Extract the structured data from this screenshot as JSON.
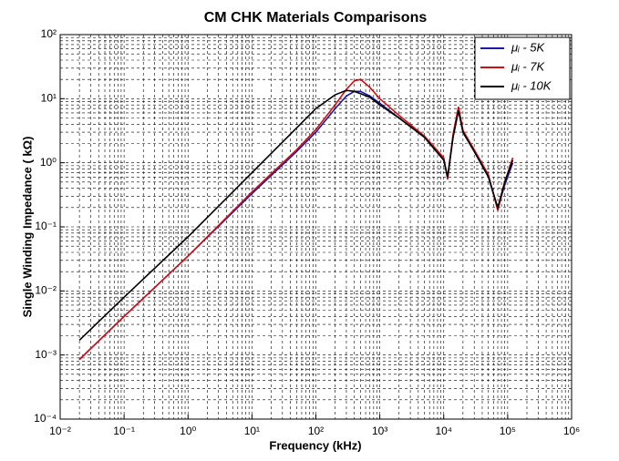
{
  "chart_data": {
    "type": "line",
    "title": "CM CHK  Materials Comparisons",
    "x_label": "Frequency (kHz)",
    "y_label": "Single Winding Impedance ( kΩ)",
    "x_log": true,
    "y_log": true,
    "grid": true,
    "minor_grid": true,
    "legend_position": "upper right",
    "xlim": [
      0.01,
      1000000
    ],
    "ylim": [
      0.0001,
      100
    ],
    "xticks": [
      {
        "value": 0.01,
        "label": "10⁻²"
      },
      {
        "value": 0.1,
        "label": "10⁻¹"
      },
      {
        "value": 1,
        "label": "10⁰"
      },
      {
        "value": 10,
        "label": "10¹"
      },
      {
        "value": 100,
        "label": "10²"
      },
      {
        "value": 1000,
        "label": "10³"
      },
      {
        "value": 10000,
        "label": "10⁴"
      },
      {
        "value": 100000,
        "label": "10⁵"
      },
      {
        "value": 1000000,
        "label": "10⁶"
      }
    ],
    "yticks": [
      {
        "value": 0.0001,
        "label": "10⁻⁴"
      },
      {
        "value": 0.001,
        "label": "10⁻³"
      },
      {
        "value": 0.01,
        "label": "10⁻²"
      },
      {
        "value": 0.1,
        "label": "10⁻¹"
      },
      {
        "value": 1,
        "label": "10⁰"
      },
      {
        "value": 10,
        "label": "10¹"
      },
      {
        "value": 100,
        "label": "10²"
      }
    ],
    "x": [
      0.02,
      0.1,
      1,
      10,
      50,
      100,
      200,
      300,
      400,
      500,
      700,
      1000,
      2000,
      5000,
      10000,
      11500,
      14000,
      17000,
      20000,
      30000,
      50000,
      70000,
      90000,
      120000
    ],
    "series": [
      {
        "name": "μᵢ - 5K",
        "color": "#1a1aa8",
        "values": [
          0.00085,
          0.004,
          0.035,
          0.33,
          1.5,
          3,
          7,
          11,
          13,
          13,
          11,
          8.5,
          5,
          2.5,
          1.1,
          0.6,
          2.6,
          7,
          3,
          1.5,
          0.6,
          0.19,
          0.45,
          1.0
        ]
      },
      {
        "name": "μᵢ - 7K",
        "color": "#d01010",
        "values": [
          0.00085,
          0.004,
          0.035,
          0.35,
          1.6,
          3.3,
          8,
          14,
          19,
          20,
          15,
          10,
          5.5,
          2.6,
          1.2,
          0.55,
          2.8,
          7.5,
          3.2,
          1.6,
          0.65,
          0.18,
          0.5,
          1.2
        ]
      },
      {
        "name": "μᵢ - 10K",
        "color": "#000000",
        "values": [
          0.0017,
          0.008,
          0.07,
          0.7,
          3.5,
          7,
          11.5,
          13.5,
          13,
          12,
          10.5,
          8,
          5,
          2.5,
          1.1,
          0.6,
          2.5,
          6.5,
          3,
          1.5,
          0.6,
          0.2,
          0.5,
          1.1
        ]
      }
    ]
  }
}
